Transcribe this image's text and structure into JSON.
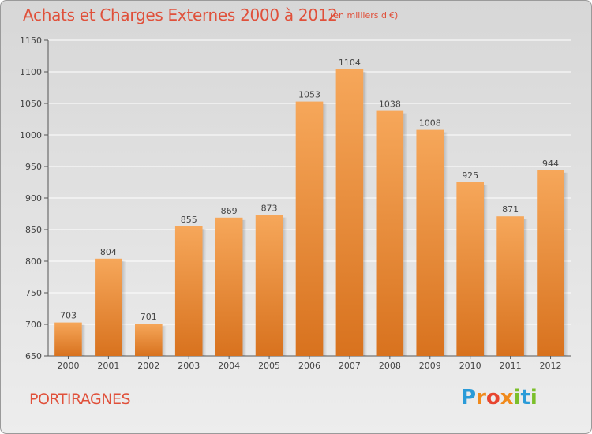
{
  "header": {
    "title": "Achats et Charges Externes 2000 à 2012",
    "subtitle": "(en milliers d'€)"
  },
  "footer": {
    "town": "PORTIRAGNES",
    "logo": "Proxiti"
  },
  "colors": {
    "title": "#e0503a",
    "bar_top": "#f6a75a",
    "bar_bottom": "#d8721e",
    "grid": "#ffffff"
  },
  "chart_data": {
    "type": "bar",
    "title": "Achats et Charges Externes 2000 à 2012",
    "subtitle": "(en milliers d'€)",
    "categories": [
      "2000",
      "2001",
      "2002",
      "2003",
      "2004",
      "2005",
      "2006",
      "2007",
      "2008",
      "2009",
      "2010",
      "2011",
      "2012"
    ],
    "values": [
      703,
      804,
      701,
      855,
      869,
      873,
      1053,
      1104,
      1038,
      1008,
      925,
      871,
      944
    ],
    "ylim": [
      650,
      1150
    ],
    "yticks": [
      650,
      700,
      750,
      800,
      850,
      900,
      950,
      1000,
      1050,
      1100,
      1150
    ],
    "grid": true,
    "xlabel": "",
    "ylabel": ""
  }
}
